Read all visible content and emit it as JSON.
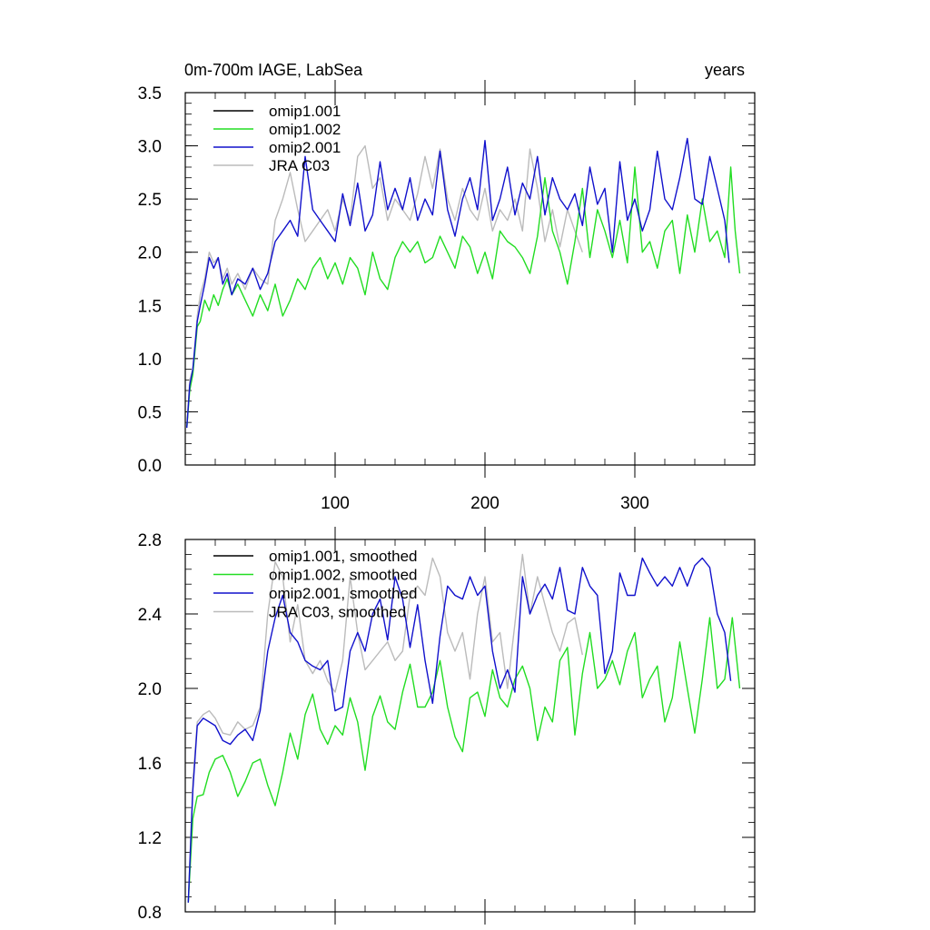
{
  "colors": {
    "omip1_001": "#000000",
    "omip1_002": "#22dd22",
    "omip2_001": "#1111cc",
    "jra_c03": "#bbbbbb"
  },
  "chart_data": [
    {
      "type": "line",
      "title": "0m-700m IAGE, LabSea",
      "units": "years",
      "xlabel": "",
      "ylabel": "",
      "xlim": [
        0,
        380
      ],
      "ylim": [
        0.0,
        3.5
      ],
      "xticks": [
        100,
        200,
        300
      ],
      "xtick_labels": [
        "100",
        "200",
        "300"
      ],
      "yticks": [
        0.0,
        0.5,
        1.0,
        1.5,
        2.0,
        2.5,
        3.0,
        3.5
      ],
      "ytick_labels": [
        "0.0",
        "0.5",
        "1.0",
        "1.5",
        "2.0",
        "2.5",
        "3.0",
        "3.5"
      ],
      "legend_position": "top-left",
      "series": [
        {
          "name": "omip1.001",
          "color_key": "omip1_001",
          "x": [],
          "y": []
        },
        {
          "name": "omip1.002",
          "color_key": "omip1_002",
          "x": [
            1,
            3,
            5,
            8,
            10,
            13,
            16,
            19,
            22,
            25,
            28,
            31,
            35,
            40,
            45,
            50,
            55,
            60,
            65,
            70,
            75,
            80,
            85,
            90,
            95,
            100,
            105,
            110,
            115,
            120,
            125,
            130,
            135,
            140,
            145,
            150,
            155,
            160,
            165,
            170,
            175,
            180,
            185,
            190,
            195,
            200,
            205,
            210,
            215,
            220,
            225,
            230,
            235,
            240,
            245,
            250,
            255,
            260,
            265,
            270,
            275,
            280,
            285,
            290,
            295,
            300,
            305,
            310,
            315,
            320,
            325,
            330,
            335,
            340,
            345,
            350,
            355,
            360,
            364,
            367,
            370
          ],
          "y": [
            0.35,
            0.7,
            0.85,
            1.3,
            1.35,
            1.55,
            1.45,
            1.6,
            1.5,
            1.65,
            1.75,
            1.6,
            1.7,
            1.55,
            1.4,
            1.6,
            1.45,
            1.7,
            1.4,
            1.55,
            1.75,
            1.65,
            1.85,
            1.95,
            1.75,
            1.9,
            1.7,
            1.95,
            1.85,
            1.6,
            2.0,
            1.75,
            1.65,
            1.95,
            2.1,
            2.0,
            2.1,
            1.9,
            1.95,
            2.15,
            2.0,
            1.85,
            2.15,
            2.05,
            1.8,
            2.0,
            1.75,
            2.2,
            2.1,
            2.05,
            1.95,
            1.8,
            2.15,
            2.7,
            2.2,
            2.0,
            1.7,
            2.1,
            2.6,
            1.95,
            2.4,
            2.2,
            1.95,
            2.3,
            1.9,
            2.8,
            2.0,
            2.1,
            1.85,
            2.2,
            2.3,
            1.8,
            2.35,
            2.0,
            2.5,
            2.1,
            2.2,
            1.95,
            2.8,
            2.2,
            1.8
          ]
        },
        {
          "name": "omip2.001",
          "color_key": "omip2_001",
          "x": [
            1,
            3,
            5,
            8,
            10,
            13,
            16,
            19,
            22,
            25,
            28,
            31,
            35,
            40,
            45,
            50,
            55,
            60,
            65,
            70,
            75,
            80,
            85,
            90,
            95,
            100,
            105,
            110,
            115,
            120,
            125,
            130,
            135,
            140,
            145,
            150,
            155,
            160,
            165,
            170,
            175,
            180,
            185,
            190,
            195,
            200,
            205,
            210,
            215,
            220,
            225,
            230,
            235,
            240,
            245,
            250,
            255,
            260,
            265,
            270,
            275,
            280,
            285,
            290,
            295,
            300,
            305,
            310,
            315,
            320,
            325,
            330,
            335,
            340,
            345,
            350,
            355,
            360,
            363
          ],
          "y": [
            0.35,
            0.75,
            0.9,
            1.35,
            1.5,
            1.7,
            1.95,
            1.85,
            1.95,
            1.7,
            1.8,
            1.6,
            1.75,
            1.7,
            1.85,
            1.65,
            1.8,
            2.1,
            2.2,
            2.3,
            2.15,
            2.9,
            2.4,
            2.3,
            2.2,
            2.1,
            2.55,
            2.25,
            2.65,
            2.2,
            2.35,
            2.85,
            2.4,
            2.6,
            2.4,
            2.7,
            2.3,
            2.5,
            2.35,
            2.95,
            2.4,
            2.15,
            2.5,
            2.7,
            2.4,
            3.05,
            2.3,
            2.5,
            2.8,
            2.35,
            2.65,
            2.5,
            2.9,
            2.35,
            2.7,
            2.5,
            2.4,
            2.55,
            2.25,
            2.8,
            2.45,
            2.6,
            2.0,
            2.85,
            2.3,
            2.5,
            2.2,
            2.4,
            2.95,
            2.5,
            2.4,
            2.7,
            3.07,
            2.5,
            2.45,
            2.9,
            2.6,
            2.3,
            1.9
          ]
        },
        {
          "name": "JRA C03",
          "color_key": "jra_c03",
          "x": [
            1,
            3,
            5,
            8,
            10,
            13,
            16,
            19,
            22,
            25,
            28,
            31,
            35,
            40,
            45,
            50,
            55,
            60,
            65,
            70,
            75,
            80,
            85,
            90,
            95,
            100,
            105,
            110,
            115,
            120,
            125,
            130,
            135,
            140,
            145,
            150,
            155,
            160,
            165,
            170,
            175,
            180,
            185,
            190,
            195,
            200,
            205,
            210,
            215,
            220,
            225,
            230,
            235,
            240,
            245,
            250,
            255,
            260,
            265
          ],
          "y": [
            0.35,
            0.8,
            0.9,
            1.4,
            1.6,
            1.75,
            2.0,
            1.9,
            1.95,
            1.75,
            1.85,
            1.7,
            1.8,
            1.65,
            1.85,
            1.75,
            1.7,
            2.3,
            2.5,
            2.75,
            2.4,
            2.1,
            2.2,
            2.3,
            2.4,
            2.2,
            2.5,
            2.3,
            2.9,
            3.0,
            2.6,
            2.7,
            2.3,
            2.5,
            2.4,
            2.3,
            2.55,
            2.9,
            2.6,
            2.97,
            2.5,
            2.3,
            2.6,
            2.4,
            2.3,
            2.6,
            2.2,
            2.4,
            2.3,
            2.5,
            2.2,
            2.97,
            2.6,
            2.1,
            2.4,
            2.05,
            2.4,
            2.2,
            2.0
          ]
        }
      ]
    },
    {
      "type": "line",
      "title": "",
      "xlabel": "",
      "ylabel": "",
      "xlim": [
        0,
        380
      ],
      "ylim": [
        0.8,
        2.8
      ],
      "xticks": [
        100,
        200,
        300
      ],
      "xtick_labels": [
        "",
        "",
        ""
      ],
      "yticks": [
        0.8,
        1.2,
        1.6,
        2.0,
        2.4,
        2.8
      ],
      "ytick_labels": [
        "0.8",
        "1.2",
        "1.6",
        "2.0",
        "2.4",
        "2.8"
      ],
      "legend_position": "top-left",
      "series": [
        {
          "name": "omip1.001, smoothed",
          "color_key": "omip1_001",
          "x": [],
          "y": []
        },
        {
          "name": "omip1.002, smoothed",
          "color_key": "omip1_002",
          "x": [
            2,
            5,
            8,
            12,
            16,
            20,
            25,
            30,
            35,
            40,
            45,
            50,
            55,
            60,
            65,
            70,
            75,
            80,
            85,
            90,
            95,
            100,
            105,
            110,
            115,
            120,
            125,
            130,
            135,
            140,
            145,
            150,
            155,
            160,
            165,
            170,
            175,
            180,
            185,
            190,
            195,
            200,
            205,
            210,
            215,
            220,
            225,
            230,
            235,
            240,
            245,
            250,
            255,
            260,
            265,
            270,
            275,
            280,
            285,
            290,
            295,
            300,
            305,
            310,
            315,
            320,
            325,
            330,
            335,
            340,
            345,
            350,
            355,
            360,
            365,
            370
          ],
          "y": [
            0.85,
            1.3,
            1.42,
            1.43,
            1.55,
            1.62,
            1.64,
            1.55,
            1.42,
            1.5,
            1.6,
            1.62,
            1.48,
            1.37,
            1.55,
            1.76,
            1.62,
            1.86,
            1.97,
            1.78,
            1.7,
            1.8,
            1.75,
            1.95,
            1.82,
            1.56,
            1.85,
            1.96,
            1.82,
            1.78,
            1.98,
            2.13,
            1.9,
            1.9,
            1.98,
            2.15,
            1.9,
            1.74,
            1.66,
            1.95,
            1.98,
            1.85,
            2.1,
            1.95,
            1.9,
            2.05,
            2.12,
            2.0,
            1.72,
            1.9,
            1.82,
            2.15,
            2.22,
            1.75,
            2.08,
            2.3,
            2.0,
            2.05,
            2.15,
            2.02,
            2.2,
            2.3,
            1.95,
            2.05,
            2.12,
            1.82,
            1.95,
            2.25,
            2.0,
            1.76,
            2.05,
            2.38,
            2.0,
            2.05,
            2.38,
            2.0
          ]
        },
        {
          "name": "omip2.001, smoothed",
          "color_key": "omip2_001",
          "x": [
            2,
            5,
            8,
            12,
            16,
            20,
            25,
            30,
            35,
            40,
            45,
            50,
            55,
            60,
            65,
            70,
            75,
            80,
            85,
            90,
            95,
            100,
            105,
            110,
            115,
            120,
            125,
            130,
            135,
            140,
            145,
            150,
            155,
            160,
            165,
            170,
            175,
            180,
            185,
            190,
            195,
            200,
            205,
            210,
            215,
            220,
            225,
            230,
            235,
            240,
            245,
            250,
            255,
            260,
            265,
            270,
            275,
            280,
            285,
            290,
            295,
            300,
            305,
            310,
            315,
            320,
            325,
            330,
            335,
            340,
            345,
            350,
            355,
            360,
            364
          ],
          "y": [
            0.85,
            1.45,
            1.8,
            1.84,
            1.82,
            1.8,
            1.72,
            1.7,
            1.75,
            1.78,
            1.72,
            1.88,
            2.2,
            2.38,
            2.5,
            2.3,
            2.25,
            2.15,
            2.12,
            2.1,
            2.15,
            1.88,
            1.9,
            2.2,
            2.3,
            2.2,
            2.4,
            2.48,
            2.26,
            2.6,
            2.48,
            2.22,
            2.45,
            2.15,
            1.92,
            2.28,
            2.55,
            2.5,
            2.48,
            2.6,
            2.5,
            2.55,
            2.2,
            2.0,
            2.1,
            1.98,
            2.6,
            2.4,
            2.5,
            2.56,
            2.48,
            2.65,
            2.42,
            2.4,
            2.65,
            2.55,
            2.5,
            2.08,
            2.2,
            2.62,
            2.5,
            2.5,
            2.7,
            2.62,
            2.55,
            2.6,
            2.55,
            2.65,
            2.55,
            2.66,
            2.7,
            2.65,
            2.4,
            2.3,
            2.04
          ]
        },
        {
          "name": "JRA C03, smoothed",
          "color_key": "jra_c03",
          "x": [
            2,
            5,
            8,
            12,
            16,
            20,
            25,
            30,
            35,
            40,
            45,
            50,
            55,
            60,
            65,
            70,
            75,
            80,
            85,
            90,
            95,
            100,
            105,
            110,
            115,
            120,
            125,
            130,
            135,
            140,
            145,
            150,
            155,
            160,
            165,
            170,
            175,
            180,
            185,
            190,
            195,
            200,
            205,
            210,
            215,
            220,
            225,
            230,
            235,
            240,
            245,
            250,
            255,
            260,
            265
          ],
          "y": [
            0.85,
            1.5,
            1.82,
            1.86,
            1.88,
            1.84,
            1.76,
            1.75,
            1.82,
            1.78,
            1.8,
            1.9,
            2.4,
            2.68,
            2.6,
            2.25,
            2.45,
            2.15,
            2.08,
            2.15,
            2.04,
            1.98,
            2.15,
            2.6,
            2.3,
            2.1,
            2.15,
            2.2,
            2.25,
            2.15,
            2.2,
            2.5,
            2.55,
            2.5,
            2.7,
            2.6,
            2.3,
            2.2,
            2.3,
            2.05,
            2.4,
            2.6,
            2.25,
            2.3,
            2.0,
            2.35,
            2.72,
            2.4,
            2.6,
            2.45,
            2.3,
            2.2,
            2.35,
            2.38,
            2.18
          ]
        }
      ]
    }
  ]
}
